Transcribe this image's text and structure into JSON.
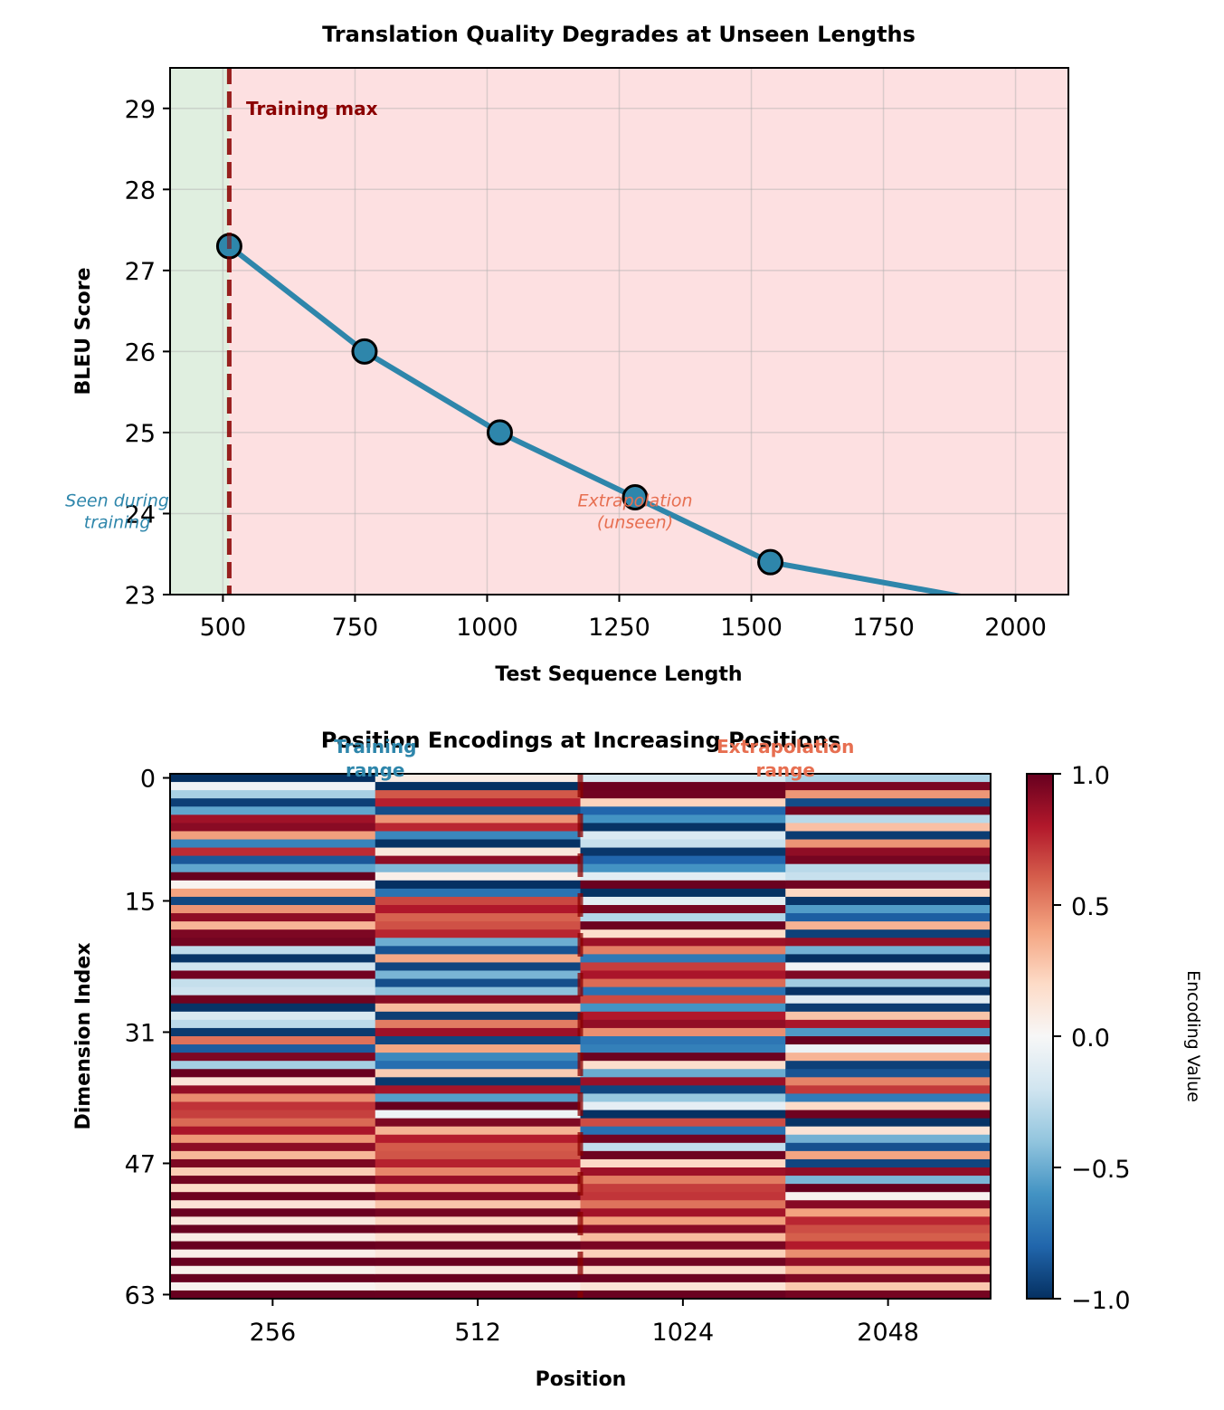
{
  "chart_data": [
    {
      "type": "line",
      "title": "Translation Quality Degrades at Unseen Lengths",
      "xlabel": "Test Sequence Length",
      "ylabel": "BLEU Score",
      "xlim": [
        400,
        2100
      ],
      "ylim": [
        23,
        29.5
      ],
      "xticks": [
        500,
        750,
        1000,
        1250,
        1500,
        1750,
        2000
      ],
      "yticks": [
        23,
        24,
        25,
        26,
        27,
        28,
        29
      ],
      "grid": true,
      "series": [
        {
          "name": "BLEU",
          "color": "#2e86ab",
          "x": [
            512,
            768,
            1024,
            1280,
            1536,
            2048
          ],
          "y": [
            27.3,
            26.0,
            25.0,
            24.2,
            23.4,
            22.8
          ]
        }
      ],
      "regions": [
        {
          "name": "seen",
          "from": 400,
          "to": 512,
          "color": "#e0efe0"
        },
        {
          "name": "unseen",
          "from": 512,
          "to": 2100,
          "color": "#fde0e1"
        }
      ],
      "vline": {
        "x": 512,
        "label": "Training max",
        "color": "#8b0000"
      },
      "annotations": [
        {
          "text_lines": [
            "Seen during",
            "training"
          ],
          "x": 300,
          "y": 24.0,
          "color": "#2e86ab"
        },
        {
          "text_lines": [
            "Extrapolation",
            "(unseen)"
          ],
          "x": 1280,
          "y": 24.0,
          "color": "#e76f51"
        }
      ]
    },
    {
      "type": "heatmap",
      "title": "Position Encodings at Increasing Positions",
      "xlabel": "Position",
      "ylabel": "Dimension Index",
      "columns": [
        256,
        512,
        1024,
        2048
      ],
      "xticklabels": [
        "256",
        "512",
        "1024",
        "2048"
      ],
      "rows": 64,
      "yticks": [
        0,
        15,
        31,
        47,
        63
      ],
      "encoding": {
        "kind": "sinusoidal",
        "d_model": 64,
        "base": 10000,
        "even_dims": "sin",
        "odd_dims": "cos"
      },
      "colormap": "RdBu_r",
      "vmin": -1.0,
      "vmax": 1.0,
      "colorbar": {
        "label": "Encoding Value",
        "ticks": [
          "1.0",
          "0.5",
          "0.0",
          "−0.5",
          "−1.0"
        ],
        "tick_values": [
          1.0,
          0.5,
          0.0,
          -0.5,
          -1.0
        ]
      },
      "divider_after_column": 1,
      "annotations": [
        {
          "text_lines": [
            "Training",
            "range"
          ],
          "column_span": [
            0,
            1
          ],
          "color": "#2e86ab"
        },
        {
          "text_lines": [
            "Extrapolation",
            "range"
          ],
          "column_span": [
            2,
            3
          ],
          "color": "#e76f51"
        }
      ]
    }
  ]
}
